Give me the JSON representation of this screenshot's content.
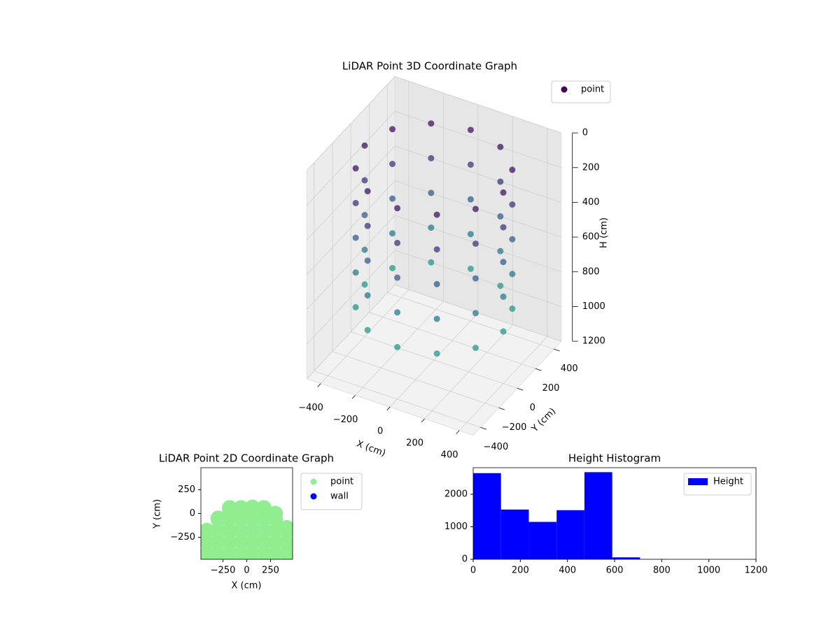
{
  "chart_data": [
    {
      "type": "scatter3d",
      "title": "LiDAR Point 3D Coordinate Graph",
      "xlabel": "X (cm)",
      "ylabel": "Y (cm)",
      "zlabel": "H (cm)",
      "xlim": [
        -480,
        480
      ],
      "ylim": [
        -480,
        480
      ],
      "zlim": [
        1200,
        0
      ],
      "xticks": [
        {
          "value": -400,
          "label": "−400"
        },
        {
          "value": -200,
          "label": "−200"
        },
        0,
        200,
        400
      ],
      "yticks": [
        {
          "value": -400,
          "label": "−400"
        },
        {
          "value": -200,
          "label": "−200"
        },
        0,
        200,
        400
      ],
      "zticks": [
        0,
        200,
        400,
        600,
        800,
        1000,
        1200
      ],
      "grid": true,
      "legend": "upper right",
      "colormap": "viridis",
      "series": [
        {
          "name": "point",
          "color": "#440154",
          "x": [
            400,
            346,
            200,
            0,
            -200,
            -346,
            -400,
            -346,
            -200,
            0,
            200,
            346,
            400,
            346,
            200,
            0,
            -200,
            -346,
            -400,
            -346,
            -200,
            0,
            200,
            346,
            400,
            346,
            200,
            0,
            -200,
            -346,
            -400,
            -346,
            -200,
            0,
            200,
            346,
            400,
            346,
            200,
            0,
            -200,
            -346,
            -400,
            -346,
            -200,
            0,
            200,
            346,
            400,
            346,
            200,
            0,
            -200,
            -346,
            -400,
            -346,
            -200,
            0,
            200,
            346
          ],
          "y": [
            0,
            200,
            346,
            400,
            346,
            200,
            0,
            -200,
            -346,
            -400,
            -346,
            -200,
            0,
            200,
            346,
            400,
            346,
            200,
            0,
            -200,
            -346,
            -400,
            -346,
            -200,
            0,
            200,
            346,
            400,
            346,
            200,
            0,
            -200,
            -346,
            -400,
            -346,
            -200,
            0,
            200,
            346,
            400,
            346,
            200,
            0,
            -200,
            -346,
            -400,
            -346,
            -200,
            0,
            200,
            346,
            400,
            346,
            200,
            0,
            -200,
            -346,
            -400,
            -346,
            -200
          ],
          "z": [
            100,
            100,
            100,
            100,
            100,
            100,
            100,
            100,
            100,
            100,
            100,
            100,
            300,
            300,
            300,
            300,
            300,
            300,
            300,
            300,
            300,
            300,
            300,
            300,
            500,
            500,
            500,
            500,
            500,
            500,
            500,
            500,
            500,
            500,
            500,
            500,
            700,
            700,
            700,
            700,
            700,
            700,
            700,
            700,
            700,
            700,
            700,
            700,
            900,
            900,
            900,
            900,
            900,
            900,
            900,
            900,
            900,
            900,
            900,
            900
          ]
        }
      ]
    },
    {
      "type": "scatter",
      "title": "LiDAR Point 2D Coordinate Graph",
      "xlabel": "X (cm)",
      "ylabel": "Y (cm)",
      "xlim": [
        -482,
        482
      ],
      "ylim": [
        -482,
        482
      ],
      "xticks": [
        {
          "value": -250,
          "label": "−250"
        },
        0,
        250
      ],
      "yticks": [
        {
          "value": -250,
          "label": "−250"
        },
        0,
        250
      ],
      "legend": "upper right",
      "series": [
        {
          "name": "point",
          "color": "#90ee90",
          "x": [
            -420,
            -420,
            -420,
            -300,
            -300,
            -300,
            -300,
            -180,
            -180,
            -180,
            -180,
            -180,
            -60,
            -60,
            -60,
            -60,
            -60,
            60,
            60,
            60,
            60,
            60,
            180,
            180,
            180,
            180,
            180,
            300,
            300,
            300,
            300,
            420,
            420,
            420,
            -420,
            -300,
            -180,
            -60,
            60,
            180,
            300,
            420
          ],
          "y": [
            -420,
            -300,
            -180,
            -420,
            -300,
            -180,
            -60,
            -420,
            -300,
            -180,
            -60,
            60,
            -420,
            -300,
            -180,
            -60,
            60,
            -420,
            -300,
            -180,
            -60,
            60,
            -420,
            -300,
            -180,
            -60,
            60,
            -420,
            -300,
            -180,
            -60,
            -420,
            -300,
            -180,
            -180,
            -50,
            10,
            45,
            65,
            50,
            0,
            -150
          ]
        },
        {
          "name": "wall",
          "color": "#0000ff",
          "x": [],
          "y": []
        }
      ]
    },
    {
      "type": "histogram",
      "title": "Height Histogram",
      "legend": "upper right",
      "bins": [
        0,
        118,
        236,
        354,
        472,
        590,
        708,
        826,
        944,
        1062,
        1180
      ],
      "series": [
        {
          "name": "Height",
          "color": "#0000ff",
          "values": [
            2650,
            1530,
            1150,
            1510,
            2680,
            60,
            5,
            0,
            0,
            0
          ]
        }
      ],
      "xlim": [
        0,
        1200
      ],
      "ylim": [
        0,
        2817
      ],
      "xticks": [
        0,
        200,
        400,
        600,
        800,
        1000,
        1200
      ],
      "yticks": [
        0,
        1000,
        2000
      ]
    }
  ]
}
